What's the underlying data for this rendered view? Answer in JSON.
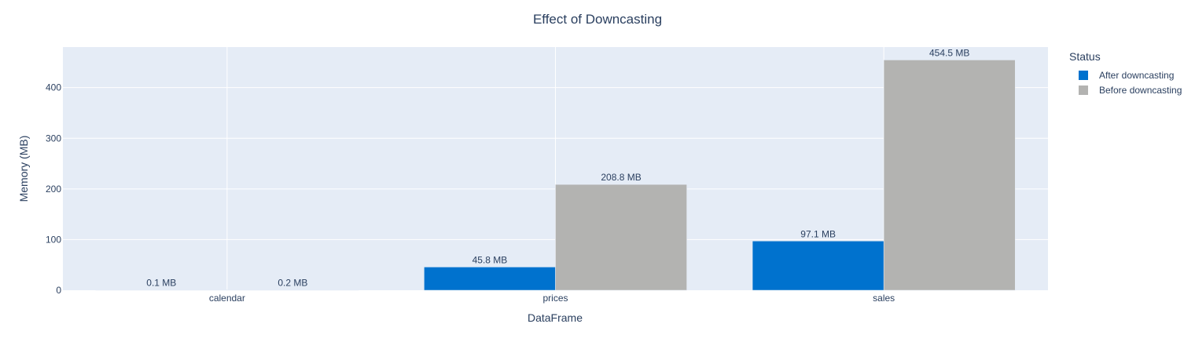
{
  "chart_data": {
    "type": "bar",
    "title": "Effect of Downcasting",
    "xlabel": "DataFrame",
    "ylabel": "Memory (MB)",
    "categories": [
      "calendar",
      "prices",
      "sales"
    ],
    "ylim": [
      0,
      480
    ],
    "yticks": [
      0,
      100,
      200,
      300,
      400
    ],
    "grid": true,
    "legend_position": "top-right",
    "legend_title": "Status",
    "series": [
      {
        "name": "After downcasting",
        "color": "#0072CE",
        "values": [
          0.1,
          45.8,
          97.1
        ],
        "labels": [
          "0.1 MB",
          "45.8 MB",
          "97.1 MB"
        ]
      },
      {
        "name": "Before downcasting",
        "color": "#B3B3B1",
        "values": [
          0.2,
          208.8,
          454.5
        ],
        "labels": [
          "0.2 MB",
          "208.8 MB",
          "454.5 MB"
        ]
      }
    ]
  }
}
